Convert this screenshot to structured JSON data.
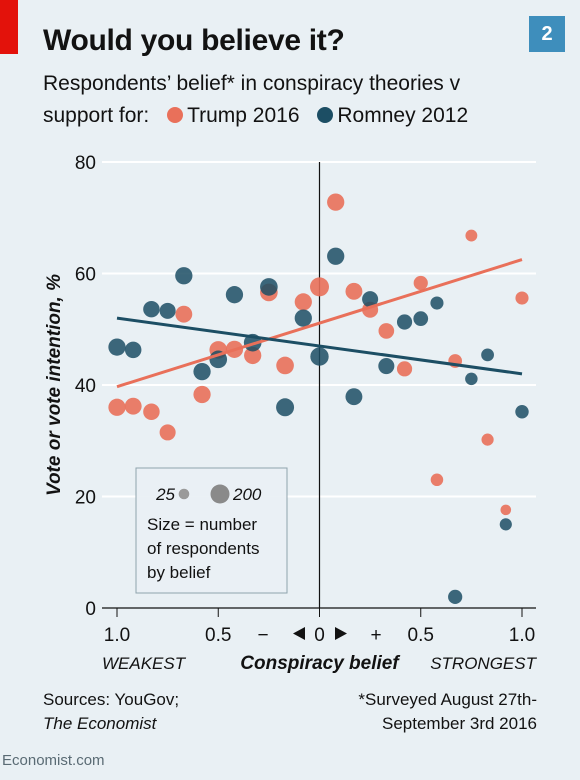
{
  "header": {
    "title": "Would you believe it?",
    "number": "2",
    "subtitle_line1": "Respondents’ belief* in conspiracy theories v",
    "subtitle_line2_prefix": "support for:",
    "legend": [
      {
        "label": "Trump 2016",
        "color": "#e9705a"
      },
      {
        "label": "Romney 2012",
        "color": "#1c4e64"
      }
    ]
  },
  "chart_data": {
    "type": "scatter",
    "title": "Would you believe it?",
    "ylabel": "Vote or vote intention, %",
    "xlabel": "Conspiracy belief",
    "x_end_labels": {
      "left": "WEAKEST",
      "right": "STRONGEST"
    },
    "x_tick_labels": [
      "1.0",
      "0.5",
      "−",
      "0",
      "+",
      "0.5",
      "1.0"
    ],
    "xlim": [
      -1.0,
      1.0
    ],
    "ylim": [
      0,
      80
    ],
    "yticks": [
      0,
      20,
      40,
      60,
      80
    ],
    "grid": true,
    "size_legend": {
      "small_label": "25",
      "large_label": "200",
      "line1": "Size = number",
      "line2": "of respondents",
      "line3": "by belief"
    },
    "series": [
      {
        "name": "Trump 2016",
        "color": "#e9705a",
        "trendline": {
          "x": [
            -1.0,
            1.0
          ],
          "y": [
            39.7,
            62.5
          ]
        },
        "points": [
          {
            "x": -1.0,
            "y": 36,
            "n": 150
          },
          {
            "x": -0.92,
            "y": 36.2,
            "n": 140
          },
          {
            "x": -0.83,
            "y": 35.2,
            "n": 130
          },
          {
            "x": -0.75,
            "y": 31.5,
            "n": 120
          },
          {
            "x": -0.67,
            "y": 52.7,
            "n": 140
          },
          {
            "x": -0.58,
            "y": 38.3,
            "n": 150
          },
          {
            "x": -0.5,
            "y": 46.3,
            "n": 160
          },
          {
            "x": -0.42,
            "y": 46.4,
            "n": 150
          },
          {
            "x": -0.33,
            "y": 45.3,
            "n": 150
          },
          {
            "x": -0.25,
            "y": 56.6,
            "n": 160
          },
          {
            "x": -0.17,
            "y": 43.5,
            "n": 160
          },
          {
            "x": -0.08,
            "y": 54.9,
            "n": 150
          },
          {
            "x": 0.0,
            "y": 57.6,
            "n": 200
          },
          {
            "x": 0.08,
            "y": 72.8,
            "n": 150
          },
          {
            "x": 0.17,
            "y": 56.8,
            "n": 140
          },
          {
            "x": 0.25,
            "y": 53.5,
            "n": 120
          },
          {
            "x": 0.33,
            "y": 49.7,
            "n": 110
          },
          {
            "x": 0.42,
            "y": 42.9,
            "n": 100
          },
          {
            "x": 0.5,
            "y": 58.3,
            "n": 80
          },
          {
            "x": 0.58,
            "y": 23.0,
            "n": 50
          },
          {
            "x": 0.67,
            "y": 44.3,
            "n": 70
          },
          {
            "x": 0.75,
            "y": 66.8,
            "n": 40
          },
          {
            "x": 0.83,
            "y": 30.2,
            "n": 45
          },
          {
            "x": 0.92,
            "y": 17.6,
            "n": 25
          },
          {
            "x": 1.0,
            "y": 55.6,
            "n": 60
          }
        ]
      },
      {
        "name": "Romney 2012",
        "color": "#1c4e64",
        "trendline": {
          "x": [
            -1.0,
            1.0
          ],
          "y": [
            52.0,
            42.0
          ]
        },
        "points": [
          {
            "x": -1.0,
            "y": 46.8,
            "n": 150
          },
          {
            "x": -0.92,
            "y": 46.3,
            "n": 130
          },
          {
            "x": -0.83,
            "y": 53.6,
            "n": 130
          },
          {
            "x": -0.75,
            "y": 53.3,
            "n": 120
          },
          {
            "x": -0.67,
            "y": 59.6,
            "n": 150
          },
          {
            "x": -0.58,
            "y": 42.4,
            "n": 150
          },
          {
            "x": -0.5,
            "y": 44.6,
            "n": 160
          },
          {
            "x": -0.42,
            "y": 56.2,
            "n": 150
          },
          {
            "x": -0.33,
            "y": 47.6,
            "n": 160
          },
          {
            "x": -0.25,
            "y": 57.6,
            "n": 160
          },
          {
            "x": -0.17,
            "y": 36.0,
            "n": 170
          },
          {
            "x": -0.08,
            "y": 52.0,
            "n": 150
          },
          {
            "x": 0.0,
            "y": 45.1,
            "n": 180
          },
          {
            "x": 0.08,
            "y": 63.1,
            "n": 150
          },
          {
            "x": 0.17,
            "y": 37.9,
            "n": 140
          },
          {
            "x": 0.25,
            "y": 55.4,
            "n": 120
          },
          {
            "x": 0.33,
            "y": 43.4,
            "n": 120
          },
          {
            "x": 0.42,
            "y": 51.3,
            "n": 100
          },
          {
            "x": 0.5,
            "y": 51.9,
            "n": 90
          },
          {
            "x": 0.58,
            "y": 54.7,
            "n": 60
          },
          {
            "x": 0.67,
            "y": 2.0,
            "n": 80
          },
          {
            "x": 0.75,
            "y": 41.1,
            "n": 50
          },
          {
            "x": 0.83,
            "y": 45.4,
            "n": 55
          },
          {
            "x": 0.92,
            "y": 15.0,
            "n": 45
          },
          {
            "x": 1.0,
            "y": 35.2,
            "n": 65
          }
        ]
      }
    ]
  },
  "footer": {
    "sources_line1": "Sources: YouGov;",
    "sources_line2": "The Economist",
    "footnote_line1": "*Surveyed August 27th-",
    "footnote_line2": "September 3rd 2016",
    "credit": "Economist.com"
  }
}
